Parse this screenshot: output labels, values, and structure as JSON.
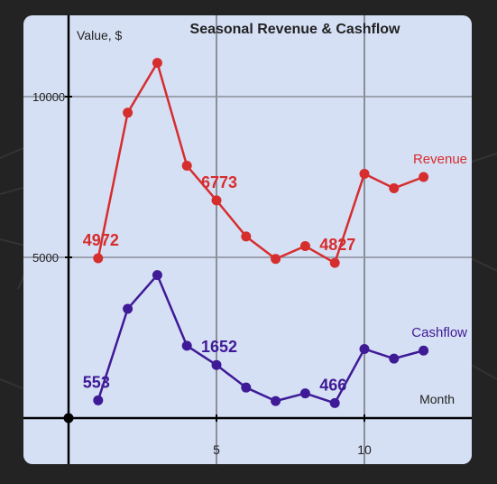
{
  "chart_data": {
    "type": "line",
    "title": "Seasonal Revenue & Cashflow",
    "ylabel": "Value, $",
    "xlabel": "Month",
    "xlim": [
      -1,
      13
    ],
    "ylim": [
      -1000,
      12500
    ],
    "x_ticks": [
      5,
      10
    ],
    "y_ticks": [
      5000,
      10000
    ],
    "grid": true,
    "x": [
      1,
      2,
      3,
      4,
      5,
      6,
      7,
      8,
      9,
      10,
      11,
      12
    ],
    "series": [
      {
        "name": "Revenue",
        "color": "#d62d2d",
        "values": [
          4972,
          9500,
          11050,
          7850,
          6773,
          5650,
          4950,
          5350,
          4827,
          7600,
          7150,
          7500
        ],
        "labeled_points": [
          0,
          4,
          8
        ]
      },
      {
        "name": "Cashflow",
        "color": "#3f1a96",
        "values": [
          553,
          3400,
          4450,
          2250,
          1652,
          950,
          530,
          770,
          466,
          2150,
          1850,
          2100
        ],
        "labeled_points": [
          0,
          4,
          8
        ]
      }
    ]
  }
}
